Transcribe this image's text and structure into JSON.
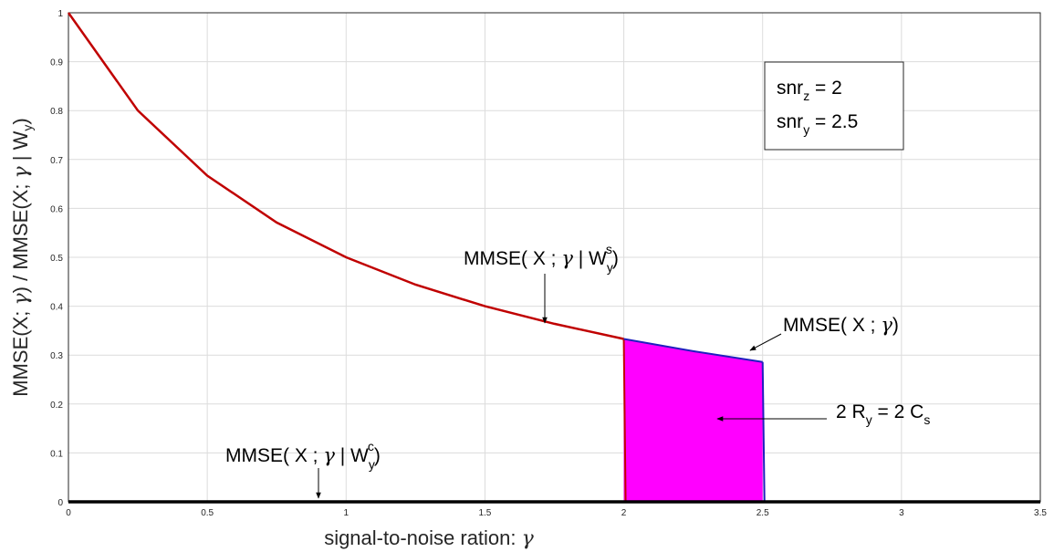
{
  "chart_data": {
    "type": "area",
    "xlabel": "signal-to-noise ration:",
    "xlabel_symbol": "γ",
    "ylabel": "MMSE(X; γ) / MMSE(X; γ | W_y)",
    "ylabel_parts": {
      "a": "MMSE(X; ",
      "g1": "γ",
      "b": ") / MMSE(X; ",
      "g2": "γ",
      "c": " | W",
      "sub": "y",
      "d": ")"
    },
    "xlim": [
      0,
      3.5
    ],
    "ylim": [
      0,
      1
    ],
    "grid": true,
    "x_ticks": [
      "0",
      "0.5",
      "1",
      "1.5",
      "2",
      "2.5",
      "3",
      "3.5"
    ],
    "y_ticks": [
      "0",
      "0.1",
      "0.2",
      "0.3",
      "0.4",
      "0.5",
      "0.6",
      "0.7",
      "0.8",
      "0.9",
      "1"
    ],
    "series": [
      {
        "color": "#c00000",
        "x": [
          0,
          0.25,
          0.5,
          0.75,
          1.0,
          1.25,
          1.5,
          1.75,
          2.0
        ],
        "y": [
          1.0,
          0.8,
          0.667,
          0.571,
          0.5,
          0.444,
          0.4,
          0.364,
          0.333
        ]
      },
      {
        "color": "#1f1fbf",
        "x": [
          2.0,
          2.25,
          2.5
        ],
        "y": [
          0.333,
          0.308,
          0.286
        ]
      },
      {
        "color": "#000000",
        "x": [
          0,
          3.5
        ],
        "y": [
          0,
          0
        ]
      }
    ],
    "shaded_region": {
      "color": "#ff00ff",
      "x_range": [
        2.0,
        2.5
      ],
      "label": "2 R_y = 2 C_s"
    },
    "legend_box": {
      "placement": "top-right",
      "lines": [
        {
          "base": "snr",
          "sub": "z",
          "rest": " = 2"
        },
        {
          "base": "snr",
          "sub": "y",
          "rest": " = 2.5"
        }
      ]
    },
    "annotations": [
      {
        "id": "ws",
        "pre": "MMSE( X ; ",
        "sym": "γ",
        "mid": " | W",
        "sub": "y",
        "sup": "s",
        "post": ")",
        "target": [
          1.72,
          0.365
        ]
      },
      {
        "id": "mmse",
        "pre": "MMSE( X ; ",
        "sym": "γ",
        "post": ")",
        "target": [
          2.45,
          0.305
        ]
      },
      {
        "id": "rs",
        "pre": "2 R",
        "sub": "y",
        "mid": " = 2 C",
        "sub2": "s",
        "target": [
          2.35,
          0.17
        ]
      },
      {
        "id": "wc",
        "pre": "MMSE( X ; ",
        "sym": "γ",
        "mid": " | W",
        "sub": "y",
        "sup": "c",
        "post": ")",
        "target": [
          0.9,
          0.0
        ]
      }
    ]
  }
}
